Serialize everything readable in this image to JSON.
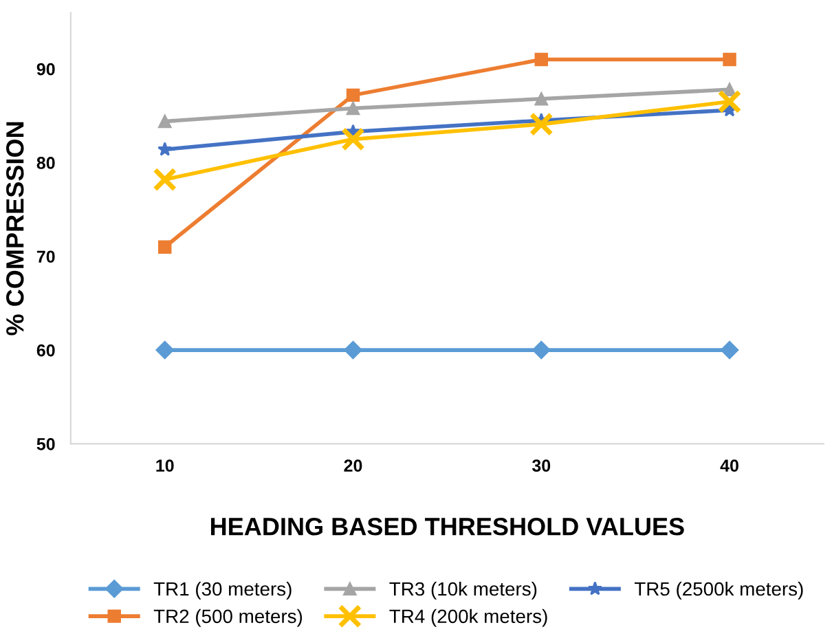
{
  "chart_data": {
    "type": "line",
    "xlabel": "HEADING BASED THRESHOLD VALUES",
    "ylabel": "% COMPRESSION",
    "categories": [
      "10",
      "20",
      "30",
      "40"
    ],
    "ylim": [
      50,
      96
    ],
    "yticks": [
      50,
      60,
      70,
      80,
      90
    ],
    "grid": false,
    "legend": "bottom",
    "line_style": "solid",
    "series": [
      {
        "name": "TR1 (30 meters)",
        "color": "#5b9bd5",
        "marker": "diamond",
        "values": [
          60,
          60,
          60,
          60
        ]
      },
      {
        "name": "TR2 (500 meters)",
        "color": "#ed7d31",
        "marker": "square",
        "values": [
          71,
          87.2,
          91,
          91
        ]
      },
      {
        "name": "TR3 (10k meters)",
        "color": "#a5a5a5",
        "marker": "triangle",
        "values": [
          84.4,
          85.8,
          86.8,
          87.8
        ]
      },
      {
        "name": "TR4 (200k meters)",
        "color": "#ffc000",
        "marker": "cross",
        "values": [
          78.2,
          82.5,
          84.1,
          86.5
        ]
      },
      {
        "name": "TR5 (2500k meters)",
        "color": "#4472c4",
        "marker": "star",
        "values": [
          81.4,
          83.3,
          84.5,
          85.6
        ]
      }
    ]
  }
}
